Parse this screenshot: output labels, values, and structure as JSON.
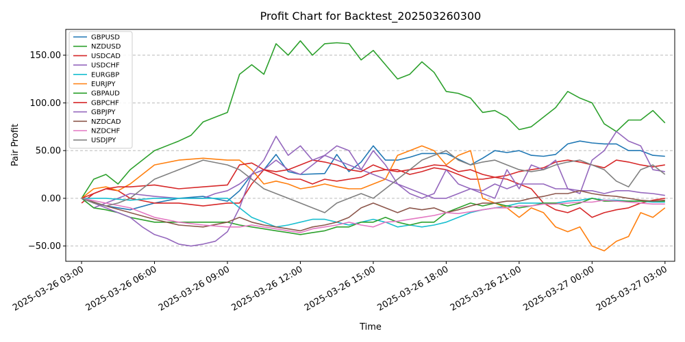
{
  "chart_data": {
    "type": "line",
    "title": "Profit Chart for Backtest_202503260300",
    "xlabel": "Time",
    "ylabel": "Pair Profit",
    "grid": "horizontal dashed",
    "legend_position": "top-left",
    "xlim": [
      -0.65,
      24.4
    ],
    "ylim": [
      -66,
      177
    ],
    "x_ticks": [
      {
        "value": 0,
        "label": "2025-03-26 03:00"
      },
      {
        "value": 3,
        "label": "2025-03-26 06:00"
      },
      {
        "value": 6,
        "label": "2025-03-26 09:00"
      },
      {
        "value": 9,
        "label": "2025-03-26 12:00"
      },
      {
        "value": 12,
        "label": "2025-03-26 15:00"
      },
      {
        "value": 15,
        "label": "2025-03-26 18:00"
      },
      {
        "value": 18,
        "label": "2025-03-26 21:00"
      },
      {
        "value": 21,
        "label": "2025-03-27 00:00"
      },
      {
        "value": 24,
        "label": "2025-03-27 03:00"
      }
    ],
    "y_ticks": [
      {
        "value": -50,
        "label": "−50.00"
      },
      {
        "value": 0,
        "label": "0.00"
      },
      {
        "value": 50,
        "label": "50.00"
      },
      {
        "value": 100,
        "label": "100.00"
      },
      {
        "value": 150,
        "label": "150.00"
      }
    ],
    "x_unit": "hours since 2025-03-26 03:00",
    "series": [
      {
        "name": "GBPUSD",
        "color": "#1f77b4",
        "x": [
          0,
          1,
          2,
          3,
          4,
          5,
          6,
          6.5,
          7,
          7.5,
          8,
          8.5,
          9,
          10,
          10.5,
          11,
          11.5,
          12,
          12.5,
          13,
          13.5,
          14,
          15,
          16,
          16.5,
          17,
          17.5,
          18,
          18.5,
          19,
          19.5,
          20,
          20.5,
          21,
          21.5,
          22,
          22.5,
          23,
          23.5,
          24
        ],
        "y": [
          0,
          -8,
          -12,
          -5,
          0,
          2,
          -3,
          8,
          25,
          30,
          46,
          28,
          25,
          26,
          46,
          28,
          38,
          55,
          40,
          40,
          43,
          47,
          47,
          35,
          42,
          50,
          48,
          50,
          45,
          44,
          46,
          57,
          60,
          58,
          57,
          57,
          50,
          50,
          45,
          44
        ]
      },
      {
        "name": "NZDUSD",
        "color": "#2ca02c",
        "x": [
          0,
          0.5,
          1,
          1.5,
          2,
          3,
          4,
          4.5,
          5,
          5.5,
          6,
          6.5,
          7,
          7.5,
          8,
          8.5,
          9,
          9.5,
          10,
          10.5,
          11,
          11.5,
          12,
          12.5,
          13,
          13.5,
          14,
          14.5,
          15,
          15.5,
          16,
          16.5,
          17,
          17.5,
          18,
          18.5,
          19,
          19.5,
          20,
          20.5,
          21,
          21.5,
          22,
          22.5,
          23,
          23.5,
          24
        ],
        "y": [
          0,
          20,
          25,
          15,
          30,
          50,
          60,
          66,
          80,
          85,
          90,
          130,
          140,
          130,
          162,
          150,
          165,
          150,
          162,
          163,
          162,
          145,
          155,
          140,
          125,
          130,
          143,
          132,
          112,
          110,
          105,
          90,
          92,
          85,
          72,
          75,
          85,
          95,
          112,
          105,
          100,
          78,
          70,
          82,
          82,
          92,
          79
        ]
      },
      {
        "name": "USDCAD",
        "color": "#d62728",
        "x": [
          0,
          0.5,
          1,
          1.5,
          2,
          3,
          4,
          5,
          6,
          6.5,
          7,
          7.5,
          8,
          8.5,
          9,
          9.5,
          10,
          10.5,
          11,
          11.5,
          12,
          12.5,
          13,
          13.5,
          14,
          14.5,
          15,
          15.5,
          16,
          16.5,
          17,
          17.5,
          18,
          18.5,
          19,
          19.5,
          20,
          20.5,
          21,
          21.5,
          22,
          22.5,
          23,
          23.5,
          24
        ],
        "y": [
          -5,
          5,
          10,
          8,
          0,
          -5,
          -5,
          -8,
          -5,
          -5,
          15,
          30,
          25,
          20,
          20,
          15,
          20,
          18,
          20,
          22,
          28,
          30,
          30,
          25,
          28,
          32,
          30,
          25,
          20,
          20,
          22,
          20,
          15,
          10,
          -5,
          -12,
          -15,
          -10,
          -20,
          -15,
          -12,
          -10,
          -5,
          -2,
          0
        ]
      },
      {
        "name": "USDCHF",
        "color": "#9467bd",
        "x": [
          0,
          0.5,
          1,
          1.5,
          2,
          3,
          4,
          5,
          5.5,
          6,
          6.5,
          7,
          7.5,
          8,
          8.5,
          9,
          9.5,
          10,
          10.5,
          11,
          11.5,
          12,
          12.5,
          13,
          13.5,
          14,
          14.5,
          15,
          15.5,
          16,
          16.5,
          17,
          17.5,
          18,
          18.5,
          19,
          19.5,
          20,
          20.5,
          21,
          21.5,
          22,
          22.5,
          23,
          23.5,
          24
        ],
        "y": [
          0,
          -10,
          -5,
          0,
          5,
          2,
          0,
          0,
          5,
          8,
          15,
          25,
          30,
          40,
          30,
          25,
          35,
          45,
          40,
          35,
          30,
          25,
          20,
          15,
          10,
          5,
          0,
          0,
          5,
          10,
          8,
          15,
          10,
          15,
          15,
          15,
          10,
          10,
          8,
          8,
          5,
          8,
          8,
          6,
          5,
          3
        ]
      },
      {
        "name": "EURGBP",
        "color": "#17becf",
        "x": [
          0,
          1,
          2,
          3,
          4,
          5,
          6,
          6.5,
          7,
          7.5,
          8,
          8.5,
          9,
          9.5,
          10,
          10.5,
          11,
          11.5,
          12,
          12.5,
          13,
          13.5,
          14,
          14.5,
          15,
          15.5,
          16,
          16.5,
          17,
          17.5,
          18,
          18.5,
          19,
          19.5,
          20,
          20.5,
          21,
          21.5,
          22,
          22.5,
          23,
          23.5,
          24
        ],
        "y": [
          0,
          0,
          -2,
          0,
          0,
          0,
          0,
          -10,
          -20,
          -25,
          -30,
          -28,
          -25,
          -22,
          -22,
          -25,
          -28,
          -25,
          -22,
          -25,
          -30,
          -28,
          -30,
          -28,
          -25,
          -20,
          -15,
          -12,
          -10,
          -8,
          -5,
          -5,
          -5,
          -5,
          -3,
          -2,
          0,
          -2,
          -2,
          -3,
          -3,
          -4,
          -4
        ]
      },
      {
        "name": "EURJPY",
        "color": "#ff7f0e",
        "x": [
          0,
          0.5,
          1,
          1.5,
          2,
          2.5,
          3,
          4,
          5,
          6,
          6.5,
          7,
          7.5,
          8,
          8.5,
          9,
          9.5,
          10,
          10.5,
          11,
          11.5,
          12,
          12.5,
          13,
          13.5,
          14,
          14.5,
          15,
          15.5,
          16,
          16.5,
          17,
          17.5,
          18,
          18.5,
          19,
          19.5,
          20,
          20.5,
          21,
          21.5,
          22,
          22.5,
          23,
          23.5,
          24
        ],
        "y": [
          0,
          10,
          12,
          8,
          15,
          25,
          35,
          40,
          42,
          40,
          40,
          30,
          15,
          18,
          15,
          10,
          12,
          15,
          12,
          10,
          10,
          15,
          20,
          45,
          50,
          55,
          50,
          35,
          45,
          50,
          0,
          -5,
          -10,
          -20,
          -10,
          -15,
          -30,
          -35,
          -30,
          -50,
          -55,
          -45,
          -40,
          -15,
          -20,
          -10
        ]
      },
      {
        "name": "GBPAUD",
        "color": "#2ca02c",
        "x": [
          0,
          0.5,
          1,
          1.5,
          2,
          3,
          4,
          5,
          6,
          6.5,
          7,
          7.5,
          8,
          8.5,
          9,
          9.5,
          10,
          10.5,
          11,
          11.5,
          12,
          12.5,
          13,
          13.5,
          14,
          14.5,
          15,
          15.5,
          16,
          16.5,
          17,
          17.5,
          18,
          18.5,
          19,
          19.5,
          20,
          20.5,
          21,
          21.5,
          22,
          22.5,
          23,
          23.5,
          24
        ],
        "y": [
          0,
          -10,
          -12,
          -15,
          -20,
          -25,
          -25,
          -25,
          -25,
          -28,
          -30,
          -32,
          -34,
          -36,
          -38,
          -36,
          -34,
          -30,
          -30,
          -25,
          -25,
          -20,
          -25,
          -28,
          -25,
          -25,
          -15,
          -10,
          -5,
          -8,
          -5,
          -8,
          -10,
          -8,
          -5,
          -5,
          -8,
          -5,
          0,
          -3,
          -3,
          -3,
          -3,
          -3,
          -3
        ]
      },
      {
        "name": "GBPCHF",
        "color": "#d62728",
        "x": [
          0,
          0.5,
          1,
          1.5,
          2,
          3,
          4,
          5,
          6,
          6.5,
          7,
          7.5,
          8,
          8.5,
          9,
          9.5,
          10,
          10.5,
          11,
          11.5,
          12,
          12.5,
          13,
          13.5,
          14,
          14.5,
          15,
          15.5,
          16,
          16.5,
          17,
          17.5,
          18,
          18.5,
          19,
          19.5,
          20,
          20.5,
          21,
          21.5,
          22,
          22.5,
          23,
          23.5,
          24
        ],
        "y": [
          0,
          5,
          10,
          12,
          12,
          14,
          10,
          12,
          14,
          35,
          37,
          30,
          28,
          30,
          35,
          40,
          38,
          35,
          30,
          28,
          35,
          30,
          28,
          30,
          32,
          35,
          34,
          28,
          30,
          25,
          22,
          24,
          28,
          30,
          32,
          38,
          40,
          38,
          35,
          32,
          40,
          38,
          35,
          33,
          35
        ]
      },
      {
        "name": "GBPJPY",
        "color": "#9467bd",
        "x": [
          0,
          0.5,
          1,
          1.5,
          2,
          2.5,
          3,
          3.5,
          4,
          4.5,
          5,
          5.5,
          6,
          6.5,
          7,
          7.5,
          8,
          8.5,
          9,
          9.5,
          10,
          10.5,
          11,
          11.5,
          12,
          12.5,
          13,
          13.5,
          14,
          14.5,
          15,
          15.5,
          16,
          16.5,
          17,
          17.5,
          18,
          18.5,
          19,
          19.5,
          20,
          20.5,
          21,
          21.5,
          22,
          22.5,
          23,
          23.5,
          24
        ],
        "y": [
          0,
          -5,
          -10,
          -15,
          -20,
          -30,
          -38,
          -42,
          -48,
          -50,
          -48,
          -45,
          -35,
          -10,
          25,
          40,
          65,
          45,
          55,
          40,
          45,
          55,
          50,
          30,
          50,
          35,
          15,
          5,
          0,
          5,
          30,
          15,
          10,
          5,
          0,
          30,
          10,
          35,
          30,
          40,
          10,
          5,
          40,
          50,
          70,
          60,
          55,
          30,
          28
        ]
      },
      {
        "name": "NZDCAD",
        "color": "#8c564b",
        "x": [
          0,
          1,
          2,
          3,
          4,
          5,
          6,
          6.5,
          7,
          7.5,
          8,
          8.5,
          9,
          9.5,
          10,
          10.5,
          11,
          11.5,
          12,
          12.5,
          13,
          13.5,
          14,
          14.5,
          15,
          15.5,
          16,
          16.5,
          17,
          17.5,
          18,
          18.5,
          19,
          19.5,
          20,
          20.5,
          21,
          21.5,
          22,
          22.5,
          23,
          23.5,
          24
        ],
        "y": [
          0,
          -8,
          -15,
          -22,
          -28,
          -30,
          -25,
          -20,
          -25,
          -28,
          -30,
          -32,
          -34,
          -30,
          -28,
          -25,
          -20,
          -10,
          -5,
          -10,
          -15,
          -10,
          -12,
          -10,
          -15,
          -12,
          -8,
          -5,
          -5,
          -3,
          -3,
          0,
          2,
          5,
          5,
          8,
          5,
          3,
          2,
          0,
          -2,
          -3,
          -2
        ]
      },
      {
        "name": "NZDCHF",
        "color": "#e377c2",
        "x": [
          0,
          1,
          2,
          3,
          4,
          5,
          6,
          6.5,
          7,
          7.5,
          8,
          8.5,
          9,
          9.5,
          10,
          10.5,
          11,
          11.5,
          12,
          12.5,
          13,
          13.5,
          14,
          14.5,
          15,
          15.5,
          16,
          16.5,
          17,
          17.5,
          18,
          18.5,
          19,
          19.5,
          20,
          20.5,
          21,
          21.5,
          22,
          22.5,
          23,
          23.5,
          24
        ],
        "y": [
          0,
          -5,
          -10,
          -20,
          -25,
          -28,
          -30,
          -30,
          -28,
          -30,
          -32,
          -34,
          -36,
          -32,
          -30,
          -28,
          -25,
          -28,
          -30,
          -25,
          -24,
          -22,
          -20,
          -18,
          -15,
          -16,
          -14,
          -12,
          -10,
          -10,
          -8,
          -8,
          -6,
          -6,
          -5,
          -4,
          -4,
          -2,
          -3,
          -4,
          -5,
          -6,
          -6
        ]
      },
      {
        "name": "USDJPY",
        "color": "#7f7f7f",
        "x": [
          0,
          0.5,
          1,
          1.5,
          2,
          2.5,
          3,
          4,
          5,
          6,
          6.5,
          7,
          7.5,
          8,
          8.5,
          9,
          9.5,
          10,
          10.5,
          11,
          11.5,
          12,
          12.5,
          13,
          13.5,
          14,
          14.5,
          15,
          15.5,
          16,
          16.5,
          17,
          17.5,
          18,
          18.5,
          19,
          19.5,
          20,
          20.5,
          21,
          21.5,
          22,
          22.5,
          23,
          23.5,
          24
        ],
        "y": [
          0,
          -5,
          -8,
          -5,
          0,
          10,
          20,
          30,
          40,
          35,
          30,
          20,
          10,
          5,
          0,
          -5,
          -10,
          -15,
          -5,
          0,
          5,
          0,
          10,
          20,
          30,
          40,
          45,
          50,
          40,
          35,
          38,
          40,
          35,
          30,
          28,
          30,
          35,
          38,
          40,
          35,
          30,
          18,
          12,
          30,
          35,
          25
        ]
      }
    ]
  }
}
